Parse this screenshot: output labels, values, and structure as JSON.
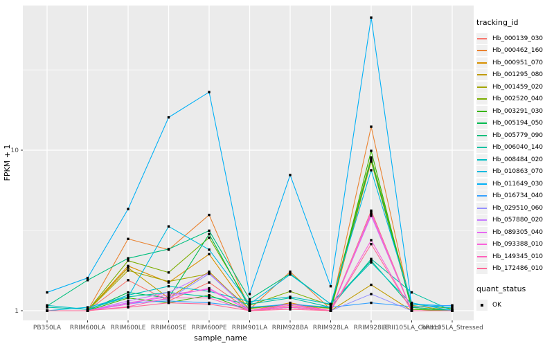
{
  "figure": {
    "xlabel": "sample_name",
    "ylabel": "FPKM + 1",
    "legend": {
      "tracking_title": "tracking_id",
      "quant_title": "quant_status",
      "quant_label": "OK"
    }
  },
  "colors": {
    "panel_bg": "#EBEBEB",
    "grid_major": "#FFFFFF",
    "grid_minor": "#FFFFFF",
    "tick_text": "#4D4D4D",
    "axis_title_text": "#000000",
    "point": "#000000",
    "legend_key_bg": "#F0F0F0"
  },
  "chart_data": {
    "type": "line",
    "title": "",
    "xlabel": "sample_name",
    "ylabel": "FPKM + 1",
    "yscale": "log10",
    "yticks": [
      1,
      10
    ],
    "minor_yticks": [
      3.16,
      31.6
    ],
    "ylim": [
      0.87,
      79
    ],
    "grid": true,
    "legend_position": "right",
    "legend_titles": [
      "tracking_id",
      "quant_status"
    ],
    "quant_status_value": "OK",
    "categories": [
      "PB350LA",
      "RRIM600LA",
      "RRIM600LE",
      "RRIM600SE",
      "RRIM600PE",
      "RRIM901LA",
      "RRIM928BA",
      "RRIM928LA",
      "RRIM928LE",
      "RRII105LA_Control",
      "RRII105LA_Stressed"
    ],
    "series": [
      {
        "name": "Hb_000139_030",
        "color": "#F8766D",
        "values": [
          1.0,
          1.0,
          1.55,
          1.15,
          1.5,
          1.0,
          1.08,
          1.0,
          4.2,
          1.0,
          1.0
        ]
      },
      {
        "name": "Hb_000462_160",
        "color": "#EA8331",
        "values": [
          1.0,
          1.0,
          2.8,
          2.4,
          3.95,
          1.02,
          1.75,
          1.02,
          14.0,
          1.02,
          1.0
        ]
      },
      {
        "name": "Hb_000951_070",
        "color": "#D89000",
        "values": [
          1.0,
          1.0,
          1.9,
          1.5,
          2.25,
          1.0,
          1.12,
          1.0,
          8.5,
          1.05,
          1.0
        ]
      },
      {
        "name": "Hb_001295_080",
        "color": "#C09B00",
        "values": [
          1.0,
          1.0,
          1.85,
          1.2,
          1.75,
          1.0,
          1.05,
          1.0,
          1.45,
          1.0,
          1.0
        ]
      },
      {
        "name": "Hb_001459_020",
        "color": "#A3A500",
        "values": [
          1.0,
          1.0,
          1.78,
          1.52,
          1.7,
          1.03,
          1.1,
          1.03,
          8.8,
          1.08,
          1.0
        ]
      },
      {
        "name": "Hb_002520_040",
        "color": "#7CAE00",
        "values": [
          1.0,
          1.0,
          2.05,
          1.73,
          2.85,
          1.08,
          1.32,
          1.08,
          9.0,
          1.1,
          1.03
        ]
      },
      {
        "name": "Hb_003291_030",
        "color": "#39B600",
        "values": [
          1.0,
          1.0,
          1.2,
          1.12,
          1.25,
          1.0,
          1.05,
          1.0,
          9.9,
          1.02,
          1.0
        ]
      },
      {
        "name": "Hb_005194_050",
        "color": "#00BB4E",
        "values": [
          1.0,
          1.0,
          1.3,
          1.2,
          3.0,
          1.04,
          1.1,
          1.04,
          8.7,
          1.05,
          1.0
        ]
      },
      {
        "name": "Hb_005779_090",
        "color": "#00BF7D",
        "values": [
          1.07,
          1.55,
          2.12,
          2.42,
          3.15,
          1.18,
          1.7,
          1.1,
          2.05,
          1.05,
          1.0
        ]
      },
      {
        "name": "Hb_006040_140",
        "color": "#00C1A3",
        "values": [
          1.05,
          1.02,
          1.22,
          1.3,
          1.22,
          1.1,
          1.2,
          1.05,
          2.1,
          1.3,
          1.0
        ]
      },
      {
        "name": "Hb_008484_020",
        "color": "#00BFC4",
        "values": [
          1.08,
          1.02,
          1.25,
          1.42,
          1.32,
          1.14,
          1.22,
          1.1,
          2.0,
          1.1,
          1.04
        ]
      },
      {
        "name": "Hb_010863_070",
        "color": "#00BAE0",
        "values": [
          1.0,
          1.05,
          1.22,
          3.35,
          2.4,
          1.1,
          1.68,
          1.1,
          7.5,
          1.12,
          1.0
        ]
      },
      {
        "name": "Hb_011649_030",
        "color": "#00B0F6",
        "values": [
          1.3,
          1.6,
          4.3,
          16.0,
          23.0,
          1.27,
          7.0,
          1.42,
          67.0,
          1.1,
          1.07
        ]
      },
      {
        "name": "Hb_016734_040",
        "color": "#35A2FF",
        "values": [
          1.0,
          1.0,
          1.12,
          1.15,
          1.12,
          1.05,
          1.1,
          1.05,
          1.12,
          1.06,
          1.08
        ]
      },
      {
        "name": "Hb_029510_060",
        "color": "#9590FF",
        "values": [
          1.0,
          1.0,
          1.1,
          1.18,
          1.7,
          1.0,
          1.05,
          1.0,
          1.27,
          1.0,
          1.0
        ]
      },
      {
        "name": "Hb_057880_020",
        "color": "#C77CFF",
        "values": [
          1.0,
          1.0,
          1.15,
          1.3,
          1.72,
          1.0,
          1.1,
          1.0,
          3.9,
          1.0,
          1.0
        ]
      },
      {
        "name": "Hb_089305_040",
        "color": "#E76BF3",
        "values": [
          1.0,
          1.0,
          1.12,
          1.22,
          1.38,
          1.0,
          1.06,
          1.0,
          4.1,
          1.0,
          1.0
        ]
      },
      {
        "name": "Hb_093388_010",
        "color": "#FA62DB",
        "values": [
          1.0,
          1.0,
          1.1,
          1.26,
          1.36,
          1.0,
          1.1,
          1.0,
          2.75,
          1.0,
          1.0
        ]
      },
      {
        "name": "Hb_149345_010",
        "color": "#FF62BC",
        "values": [
          1.0,
          1.0,
          1.06,
          1.2,
          1.2,
          1.0,
          1.05,
          1.0,
          4.0,
          1.0,
          1.0
        ]
      },
      {
        "name": "Hb_172486_010",
        "color": "#FF6A98",
        "values": [
          1.0,
          1.0,
          1.05,
          1.12,
          1.1,
          1.0,
          1.02,
          1.0,
          2.6,
          1.0,
          1.0
        ]
      }
    ]
  }
}
